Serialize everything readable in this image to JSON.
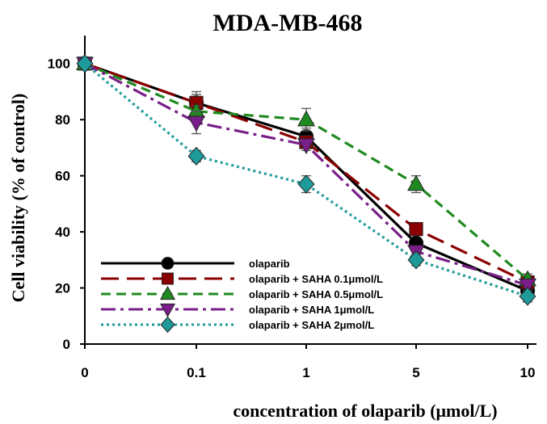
{
  "chart_data": {
    "type": "line",
    "title": "MDA-MB-468",
    "xlabel": "concentration of olaparib (μmol/L)",
    "ylabel": "Cell viability (% of control)",
    "categories": [
      "0",
      "0.1",
      "1",
      "5",
      "10"
    ],
    "yticks": [
      "0",
      "20",
      "40",
      "60",
      "80",
      "100"
    ],
    "ylim": [
      0,
      110
    ],
    "legend_position": "bottom-left",
    "grid": false,
    "series": [
      {
        "name": "olaparib",
        "values": [
          100,
          86,
          74,
          36,
          19
        ],
        "errors": [
          0,
          4,
          3,
          2,
          2
        ],
        "color": "#000000",
        "dash": "solid",
        "marker": "circle"
      },
      {
        "name": "olaparib + SAHA 0.1μmol/L",
        "values": [
          100,
          86,
          72,
          41,
          22
        ],
        "errors": [
          0,
          3,
          2,
          2,
          2
        ],
        "color": "#8b0000",
        "dash": "long-dash",
        "marker": "square"
      },
      {
        "name": "olaparib + SAHA 0.5μmol/L",
        "values": [
          100,
          83,
          80,
          57,
          23
        ],
        "errors": [
          0,
          2,
          4,
          3,
          2
        ],
        "color": "#1f8a1f",
        "dash": "dash",
        "marker": "triangle-up"
      },
      {
        "name": "olaparib + SAHA  1μmol/L",
        "values": [
          100,
          79,
          71,
          33,
          21
        ],
        "errors": [
          0,
          4,
          2,
          2,
          2
        ],
        "color": "#7a1f8a",
        "dash": "dash-dot",
        "marker": "triangle-down"
      },
      {
        "name": "olaparib + SAHA  2μmol/L",
        "values": [
          100,
          67,
          57,
          30,
          17
        ],
        "errors": [
          0,
          2,
          3,
          2,
          2
        ],
        "color": "#1f9a9a",
        "dash": "dotted",
        "marker": "diamond"
      }
    ]
  }
}
